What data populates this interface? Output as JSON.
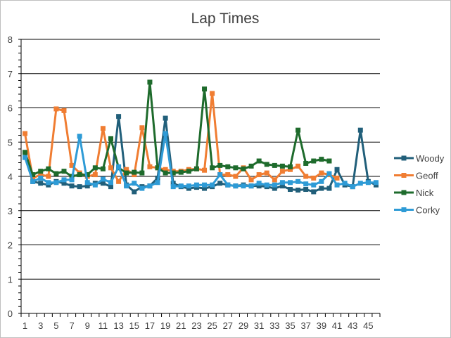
{
  "chart_data": {
    "type": "line",
    "title": "Lap Times",
    "xlabel": "",
    "ylabel": "",
    "ylim": [
      0,
      8
    ],
    "yticks": [
      0,
      1,
      2,
      3,
      4,
      5,
      6,
      7,
      8
    ],
    "xlim": [
      1,
      46
    ],
    "x_tick_labels": [
      1,
      3,
      5,
      7,
      9,
      11,
      13,
      15,
      17,
      19,
      21,
      23,
      25,
      27,
      29,
      31,
      33,
      35,
      37,
      39,
      41,
      43,
      45
    ],
    "grid": "horizontal",
    "legend": "right",
    "series": [
      {
        "name": "Woody",
        "color": "#215f7a",
        "x": [
          1,
          2,
          3,
          4,
          5,
          6,
          7,
          8,
          9,
          10,
          11,
          12,
          13,
          14,
          15,
          16,
          17,
          18,
          19,
          20,
          21,
          22,
          23,
          24,
          25,
          26,
          27,
          28,
          29,
          30,
          31,
          32,
          33,
          34,
          35,
          36,
          37,
          38,
          39,
          40,
          41,
          42,
          43,
          44,
          45,
          46
        ],
        "values": [
          4.7,
          3.85,
          3.8,
          3.75,
          3.85,
          3.8,
          3.72,
          3.7,
          3.72,
          3.8,
          3.8,
          3.7,
          5.75,
          3.75,
          3.55,
          3.7,
          3.72,
          3.95,
          5.7,
          3.8,
          3.7,
          3.65,
          3.68,
          3.65,
          3.7,
          3.8,
          3.75,
          3.72,
          3.75,
          3.72,
          3.72,
          3.7,
          3.65,
          3.72,
          3.62,
          3.6,
          3.62,
          3.55,
          3.65,
          3.65,
          4.2,
          3.75,
          3.7,
          5.35,
          3.85,
          3.75
        ]
      },
      {
        "name": "Geoff",
        "color": "#f07d32",
        "x": [
          1,
          2,
          3,
          4,
          5,
          6,
          7,
          8,
          9,
          10,
          11,
          12,
          13,
          14,
          15,
          16,
          17,
          18,
          19,
          20,
          21,
          22,
          23,
          24,
          25,
          26,
          27,
          28,
          29,
          30,
          31,
          32,
          33,
          34,
          35,
          36,
          37,
          38,
          39,
          40,
          41
        ],
        "values": [
          5.25,
          3.95,
          4.05,
          4.0,
          5.97,
          5.92,
          4.32,
          4.1,
          4.0,
          4.05,
          5.4,
          4.25,
          3.85,
          4.2,
          4.05,
          5.42,
          4.28,
          4.25,
          4.2,
          4.15,
          4.15,
          4.2,
          4.22,
          4.18,
          6.42,
          4.05,
          4.05,
          4.0,
          4.25,
          3.9,
          4.05,
          4.1,
          3.9,
          4.15,
          4.2,
          4.3,
          4.0,
          3.95,
          4.1,
          4.05,
          3.95
        ]
      },
      {
        "name": "Nick",
        "color": "#1e6b2c",
        "x": [
          1,
          2,
          3,
          4,
          5,
          6,
          7,
          8,
          9,
          10,
          11,
          12,
          13,
          14,
          15,
          16,
          17,
          18,
          19,
          20,
          21,
          22,
          23,
          24,
          25,
          26,
          27,
          28,
          29,
          30,
          31,
          32,
          33,
          34,
          35,
          36,
          37,
          38,
          39,
          40
        ],
        "values": [
          4.7,
          4.05,
          4.15,
          4.22,
          4.08,
          4.15,
          4.0,
          4.05,
          4.05,
          4.25,
          4.22,
          5.1,
          4.25,
          4.1,
          4.12,
          4.1,
          6.75,
          4.25,
          4.1,
          4.1,
          4.12,
          4.15,
          4.22,
          6.55,
          4.25,
          4.32,
          4.28,
          4.25,
          4.22,
          4.3,
          4.45,
          4.35,
          4.32,
          4.3,
          4.28,
          5.35,
          4.38,
          4.45,
          4.5,
          4.45
        ]
      },
      {
        "name": "Corky",
        "color": "#2e9bd6",
        "x": [
          1,
          2,
          3,
          4,
          5,
          6,
          7,
          8,
          9,
          10,
          11,
          12,
          13,
          14,
          15,
          16,
          17,
          18,
          19,
          20,
          21,
          22,
          23,
          24,
          25,
          26,
          27,
          28,
          29,
          30,
          31,
          32,
          33,
          34,
          35,
          36,
          37,
          38,
          39,
          40,
          41,
          42,
          43,
          44,
          45,
          46
        ],
        "values": [
          4.55,
          3.85,
          3.95,
          3.82,
          3.82,
          3.9,
          3.9,
          5.17,
          3.82,
          3.75,
          3.92,
          3.82,
          4.28,
          3.72,
          3.8,
          3.65,
          3.72,
          3.82,
          5.25,
          3.7,
          3.72,
          3.72,
          3.75,
          3.75,
          3.75,
          4.05,
          3.75,
          3.72,
          3.72,
          3.72,
          3.8,
          3.75,
          3.75,
          3.82,
          3.82,
          3.85,
          3.78,
          3.75,
          3.85,
          4.08,
          3.75,
          3.8,
          3.7,
          3.8,
          3.82,
          3.82
        ]
      }
    ]
  }
}
